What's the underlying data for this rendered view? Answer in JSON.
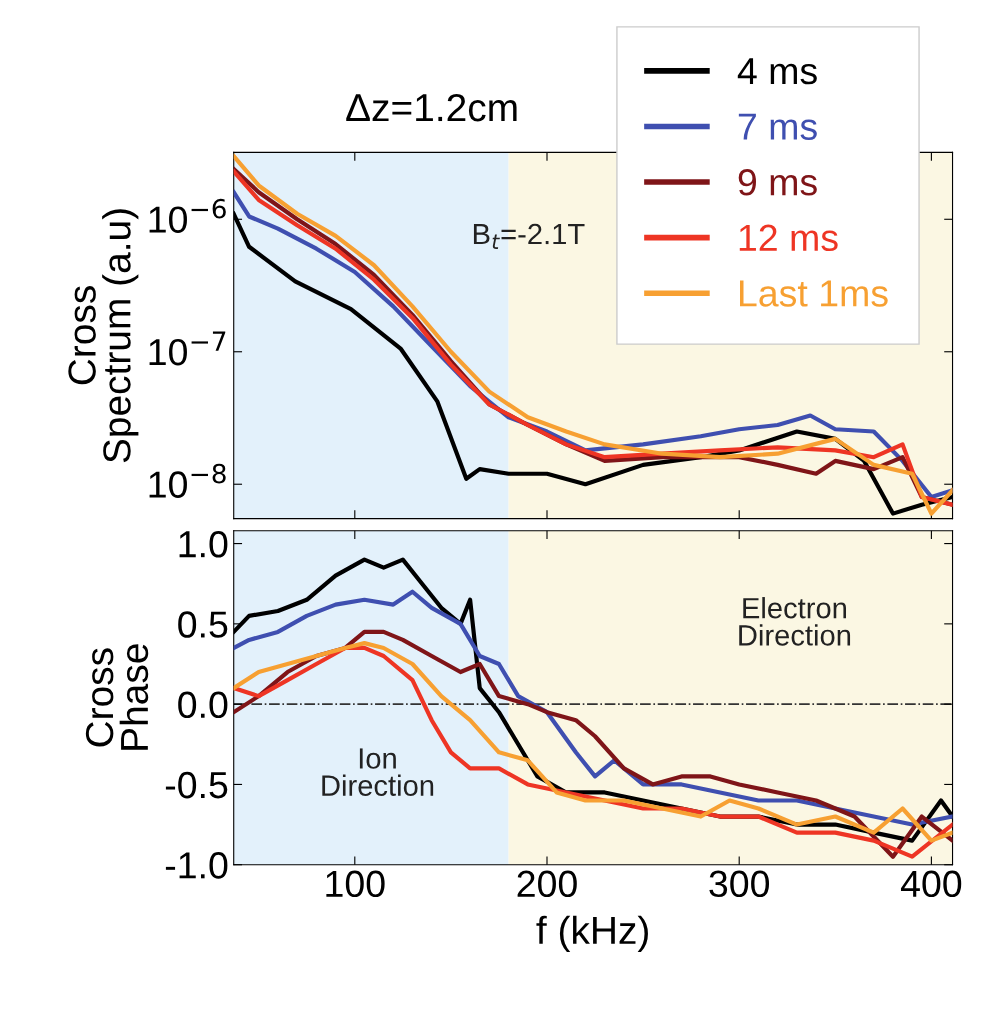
{
  "chart_data": [
    {
      "type": "line",
      "title": "Δz=1.2cm",
      "ylabel": "Cross\nSpectrum (a.u)",
      "log": "y",
      "xlim": [
        37,
        411
      ],
      "ylim": [
        5.5e-09,
        3.2e-06
      ],
      "yticks": [
        {
          "value": 1e-08,
          "label": "10$^{−8}$"
        },
        {
          "value": 1e-07,
          "label": "10$^{−7}$"
        },
        {
          "value": 1e-06,
          "label": "10$^{−6}$"
        }
      ],
      "tick_labels": "y",
      "legend": "top right",
      "grid": false,
      "bands": [
        {
          "axis": "x",
          "from": 37,
          "to": 180,
          "color": "#e3f1fb"
        },
        {
          "axis": "x",
          "from": 180,
          "to": 411,
          "color": "#fbf7e3"
        }
      ],
      "annotations": [
        "B$_{t}$=-2.1T"
      ],
      "series": [
        {
          "name": "4 ms",
          "color": "#000000",
          "x": [
            37,
            45,
            69,
            98,
            124,
            143,
            158,
            165,
            180,
            200,
            220,
            250,
            280,
            300,
            330,
            350,
            365,
            380,
            395,
            411
          ],
          "values": [
            1.1e-06,
            6.2e-07,
            3.4e-07,
            2.1e-07,
            1.05e-07,
            4.2e-08,
            1.1e-08,
            1.3e-08,
            1.2e-08,
            1.2e-08,
            1e-08,
            1.4e-08,
            1.6e-08,
            1.8e-08,
            2.5e-08,
            2.2e-08,
            1.5e-08,
            6e-09,
            7e-09,
            8e-09
          ]
        },
        {
          "name": "7 ms",
          "color": "#3f4fb0",
          "x": [
            37,
            45,
            60,
            80,
            100,
            120,
            140,
            160,
            180,
            200,
            220,
            250,
            280,
            300,
            320,
            337,
            350,
            370,
            385,
            400,
            411
          ],
          "values": [
            1.6e-06,
            1.05e-06,
            8.5e-07,
            6e-07,
            4e-07,
            2.2e-07,
            1.1e-07,
            5.5e-08,
            3.2e-08,
            2.5e-08,
            1.8e-08,
            2e-08,
            2.3e-08,
            2.6e-08,
            2.8e-08,
            3.3e-08,
            2.6e-08,
            2.5e-08,
            1.5e-08,
            8e-09,
            9e-09
          ]
        },
        {
          "name": "9 ms",
          "color": "#7f1518",
          "x": [
            37,
            50,
            70,
            90,
            110,
            130,
            150,
            170,
            190,
            210,
            230,
            260,
            290,
            300,
            320,
            340,
            350,
            370,
            385,
            395,
            411
          ],
          "values": [
            2.4e-06,
            1.6e-06,
            1e-06,
            6.5e-07,
            3.8e-07,
            1.9e-07,
            8.5e-08,
            4e-08,
            2.8e-08,
            2e-08,
            1.5e-08,
            1.6e-08,
            1.6e-08,
            1.6e-08,
            1.4e-08,
            1.2e-08,
            1.5e-08,
            1.3e-08,
            1.6e-08,
            8e-09,
            7e-09
          ]
        },
        {
          "name": "12 ms",
          "color": "#ee3524",
          "x": [
            37,
            50,
            70,
            90,
            110,
            130,
            150,
            170,
            190,
            210,
            230,
            260,
            290,
            320,
            350,
            370,
            385,
            395,
            411
          ],
          "values": [
            2.3e-06,
            1.4e-06,
            9e-07,
            6e-07,
            3.5e-07,
            1.8e-07,
            8e-08,
            4e-08,
            2.8e-08,
            2e-08,
            1.6e-08,
            1.7e-08,
            1.8e-08,
            1.9e-08,
            1.8e-08,
            1.6e-08,
            2e-08,
            8e-09,
            7e-09
          ]
        },
        {
          "name": "Last 1ms",
          "color": "#f7a032",
          "x": [
            37,
            50,
            70,
            90,
            110,
            130,
            150,
            170,
            190,
            210,
            230,
            260,
            290,
            320,
            350,
            370,
            390,
            400,
            411
          ],
          "values": [
            3e-06,
            1.8e-06,
            1.1e-06,
            7.5e-07,
            4.5e-07,
            2.2e-07,
            1e-07,
            5e-08,
            3.2e-08,
            2.5e-08,
            2e-08,
            1.7e-08,
            1.6e-08,
            1.7e-08,
            2.2e-08,
            1.4e-08,
            1.2e-08,
            6e-09,
            9e-09
          ]
        }
      ]
    },
    {
      "type": "line",
      "xlabel": "f (kHz)",
      "ylabel": "Cross\nPhase",
      "xlim": [
        37,
        411
      ],
      "xticks": [
        100,
        200,
        300,
        400
      ],
      "ylim": [
        -1.0,
        1.08
      ],
      "yticks": [
        {
          "value": -1.0,
          "label": "-1.0"
        },
        {
          "value": -0.5,
          "label": "-0.5"
        },
        {
          "value": 0,
          "label": "0.0"
        },
        {
          "value": 0.5,
          "label": "0.5"
        },
        {
          "value": 1.0,
          "label": "1.0"
        }
      ],
      "grid": false,
      "bands": [
        {
          "axis": "x",
          "from": 37,
          "to": 180,
          "color": "#e3f1fb"
        },
        {
          "axis": "x",
          "from": 180,
          "to": 411,
          "color": "#fbf7e3"
        }
      ],
      "ref_lines": [
        {
          "axis": "y",
          "value": 0,
          "color": "#333333",
          "line_style": "dashdot"
        }
      ],
      "annotations": [
        "Ion\nDirection",
        "Electron\nDirection"
      ],
      "series": [
        {
          "color": "#000000",
          "x": [
            37,
            45,
            60,
            75,
            90,
            105,
            115,
            125,
            135,
            145,
            155,
            160,
            165,
            175,
            185,
            195,
            210,
            230,
            250,
            270,
            290,
            310,
            330,
            350,
            370,
            390,
            405,
            411
          ],
          "values": [
            0.45,
            0.55,
            0.58,
            0.65,
            0.8,
            0.9,
            0.85,
            0.9,
            0.75,
            0.6,
            0.5,
            0.65,
            0.1,
            -0.05,
            -0.25,
            -0.45,
            -0.55,
            -0.55,
            -0.6,
            -0.65,
            -0.7,
            -0.7,
            -0.75,
            -0.75,
            -0.8,
            -0.85,
            -0.6,
            -0.7
          ]
        },
        {
          "color": "#3f4fb0",
          "x": [
            37,
            45,
            60,
            75,
            90,
            105,
            120,
            130,
            140,
            155,
            165,
            175,
            185,
            200,
            215,
            225,
            235,
            250,
            270,
            290,
            310,
            330,
            350,
            370,
            390,
            411
          ],
          "values": [
            0.35,
            0.4,
            0.45,
            0.55,
            0.62,
            0.65,
            0.62,
            0.7,
            0.6,
            0.5,
            0.3,
            0.25,
            0.05,
            -0.05,
            -0.3,
            -0.45,
            -0.35,
            -0.5,
            -0.5,
            -0.55,
            -0.6,
            -0.6,
            -0.65,
            -0.7,
            -0.75,
            -0.7
          ]
        },
        {
          "color": "#7f1518",
          "x": [
            37,
            50,
            65,
            80,
            95,
            105,
            115,
            125,
            140,
            155,
            165,
            175,
            190,
            200,
            215,
            225,
            240,
            255,
            270,
            285,
            300,
            320,
            340,
            360,
            380,
            395,
            411
          ],
          "values": [
            -0.05,
            0.05,
            0.2,
            0.3,
            0.35,
            0.45,
            0.45,
            0.4,
            0.3,
            0.2,
            0.25,
            0.05,
            0.0,
            -0.05,
            -0.1,
            -0.2,
            -0.4,
            -0.5,
            -0.45,
            -0.45,
            -0.5,
            -0.55,
            -0.6,
            -0.7,
            -0.95,
            -0.7,
            -0.85
          ]
        },
        {
          "color": "#ee3524",
          "x": [
            37,
            50,
            65,
            80,
            95,
            105,
            115,
            130,
            140,
            150,
            160,
            175,
            190,
            210,
            230,
            250,
            270,
            290,
            310,
            330,
            350,
            370,
            390,
            411
          ],
          "values": [
            0.1,
            0.05,
            0.15,
            0.25,
            0.35,
            0.35,
            0.3,
            0.15,
            -0.1,
            -0.3,
            -0.4,
            -0.4,
            -0.5,
            -0.55,
            -0.6,
            -0.65,
            -0.65,
            -0.7,
            -0.7,
            -0.8,
            -0.8,
            -0.85,
            -0.95,
            -0.75
          ]
        },
        {
          "color": "#f7a032",
          "x": [
            37,
            50,
            65,
            80,
            95,
            105,
            115,
            130,
            145,
            160,
            175,
            190,
            205,
            220,
            240,
            260,
            280,
            295,
            310,
            330,
            350,
            370,
            385,
            400,
            411
          ],
          "values": [
            0.1,
            0.2,
            0.25,
            0.3,
            0.35,
            0.38,
            0.35,
            0.25,
            0.05,
            -0.1,
            -0.3,
            -0.35,
            -0.55,
            -0.6,
            -0.6,
            -0.65,
            -0.7,
            -0.6,
            -0.65,
            -0.75,
            -0.7,
            -0.8,
            -0.65,
            -0.85,
            -0.8
          ]
        }
      ]
    }
  ]
}
